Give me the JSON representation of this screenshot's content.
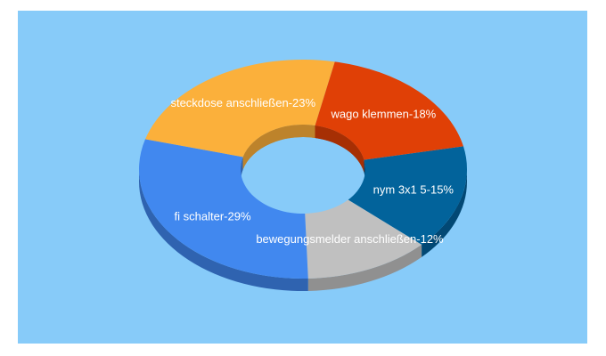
{
  "chart_data": {
    "type": "pie",
    "style": "3d-donut",
    "background_color": "#87cbf9",
    "slices": [
      {
        "label": "nym 3x1 5-15%",
        "value": 15,
        "color": "#02639b",
        "side_color": "#024874",
        "label_color": "#ffffff"
      },
      {
        "label": "bewegungsmelder anschließen-12%",
        "value": 12,
        "color": "#c0c0c0",
        "side_color": "#909090",
        "label_color": "#ffffff"
      },
      {
        "label": "fi schalter-29%",
        "value": 29,
        "color": "#4188ef",
        "side_color": "#2f63b0",
        "label_color": "#ffffff"
      },
      {
        "label": "steckdose anschließen-23%",
        "value": 23,
        "color": "#fbb03b",
        "side_color": "#bd832b",
        "label_color": "#ffffff"
      },
      {
        "label": "wago klemmen-18%",
        "value": 18,
        "color": "#e04006",
        "side_color": "#a62f04",
        "label_color": "#ffffff"
      }
    ]
  }
}
